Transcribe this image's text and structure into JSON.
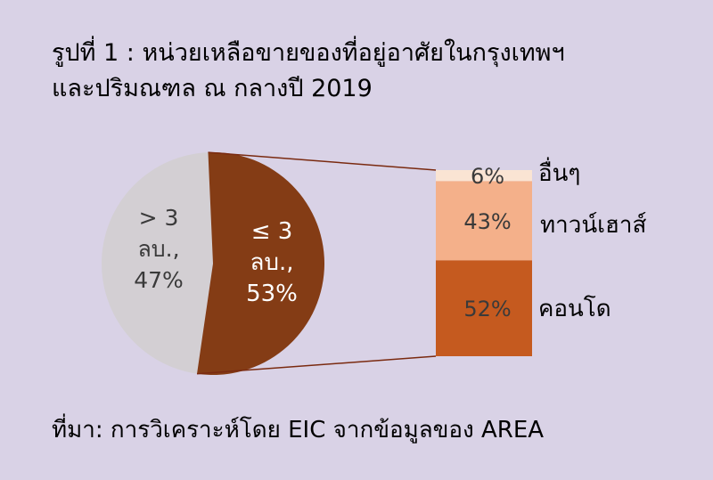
{
  "title_line1": "รูปที่ 1 : หน่วยเหลือขายของที่อยู่อาศัยในกรุงเทพฯ",
  "title_line2": "และปริมณฑล ณ กลางปี 2019",
  "source": "ที่มา: การวิเคราะห์โดย EIC จากข้อมูลของ AREA",
  "chart_data": [
    {
      "type": "pie",
      "slices": [
        {
          "label_lines": [
            "> 3",
            "ลบ.,",
            "47%"
          ],
          "value": 47,
          "color": "#d3cfd3",
          "text_color": "#3a3a3a"
        },
        {
          "label_lines": [
            "≤ 3",
            "ลบ.,",
            "53%"
          ],
          "value": 53,
          "color": "#843c15",
          "text_color": "#ffffff"
        }
      ]
    },
    {
      "type": "bar",
      "stacked": true,
      "breakdown_of": "≤ 3 ลบ.",
      "segments": [
        {
          "name": "อื่นๆ",
          "value": 6,
          "label": "6%",
          "color": "#fae4d3"
        },
        {
          "name": "ทาวน์เฮาส์",
          "value": 43,
          "label": "43%",
          "color": "#f4b08a"
        },
        {
          "name": "คอนโด",
          "value": 52,
          "label": "52%",
          "color": "#c55a1f"
        }
      ],
      "connector_color": "#7a2a10"
    }
  ]
}
